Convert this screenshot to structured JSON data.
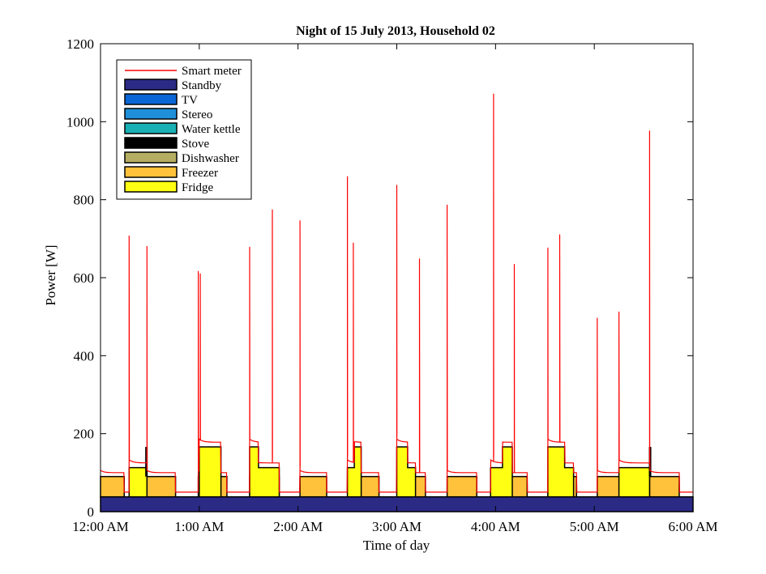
{
  "chart_data": {
    "type": "area",
    "title": "Night of 15 July 2013, Household 02",
    "xlabel": "Time of day",
    "ylabel": "Power [W]",
    "xlim": [
      0,
      6
    ],
    "ylim": [
      0,
      1200
    ],
    "xtick_values": [
      0,
      1,
      2,
      3,
      4,
      5,
      6
    ],
    "xtick_labels": [
      "12:00 AM",
      "1:00 AM",
      "2:00 AM",
      "3:00 AM",
      "4:00 AM",
      "5:00 AM",
      "6:00 AM"
    ],
    "ytick_values": [
      0,
      200,
      400,
      600,
      800,
      1000,
      1200
    ],
    "ytick_labels": [
      "0",
      "200",
      "400",
      "600",
      "800",
      "1000",
      "1200"
    ],
    "legend_position": "top-left",
    "legend": [
      {
        "name": "Smart meter",
        "color": "#ff0000",
        "kind": "line"
      },
      {
        "name": "Standby",
        "color": "#2b2a85",
        "kind": "patch"
      },
      {
        "name": "TV",
        "color": "#0a66d6",
        "kind": "patch"
      },
      {
        "name": "Stereo",
        "color": "#1f8fd9",
        "kind": "patch"
      },
      {
        "name": "Water kettle",
        "color": "#19b0b5",
        "kind": "patch"
      },
      {
        "name": "Stove",
        "color": "#000000",
        "kind": "patch"
      },
      {
        "name": "Dishwasher",
        "color": "#b5ae62",
        "kind": "patch"
      },
      {
        "name": "Freezer",
        "color": "#ffc23a",
        "kind": "patch"
      },
      {
        "name": "Fridge",
        "color": "#ffff14",
        "kind": "patch"
      }
    ],
    "standby_level": 38,
    "freezer_level": 90,
    "freezer_cycles": [
      [
        0.0,
        0.24
      ],
      [
        0.47,
        0.76
      ],
      [
        0.99,
        1.28
      ],
      [
        1.51,
        1.81
      ],
      [
        2.02,
        2.29
      ],
      [
        2.51,
        2.82
      ],
      [
        3.02,
        3.29
      ],
      [
        3.51,
        3.81
      ],
      [
        4.03,
        4.32
      ],
      [
        4.53,
        4.82
      ],
      [
        5.03,
        5.32
      ],
      [
        5.56,
        5.86
      ]
    ],
    "fridge_cycles": [
      {
        "start": 0.29,
        "end": 0.47,
        "steps": [
          [
            0.29,
            113
          ],
          [
            0.47,
            113
          ]
        ]
      },
      {
        "start": 1.0,
        "end": 1.22,
        "steps": [
          [
            1.0,
            166
          ],
          [
            1.22,
            166
          ]
        ]
      },
      {
        "start": 1.51,
        "end": 1.81,
        "steps": [
          [
            1.51,
            166
          ],
          [
            1.6,
            113
          ],
          [
            1.81,
            113
          ]
        ]
      },
      {
        "start": 2.5,
        "end": 2.64,
        "steps": [
          [
            2.5,
            113
          ],
          [
            2.57,
            166
          ],
          [
            2.64,
            166
          ]
        ]
      },
      {
        "start": 3.0,
        "end": 3.19,
        "steps": [
          [
            3.0,
            166
          ],
          [
            3.11,
            113
          ],
          [
            3.19,
            113
          ]
        ]
      },
      {
        "start": 3.95,
        "end": 4.17,
        "steps": [
          [
            3.95,
            113
          ],
          [
            4.07,
            166
          ],
          [
            4.17,
            166
          ]
        ]
      },
      {
        "start": 4.53,
        "end": 4.79,
        "steps": [
          [
            4.53,
            166
          ],
          [
            4.7,
            113
          ],
          [
            4.79,
            113
          ]
        ]
      },
      {
        "start": 5.25,
        "end": 5.56,
        "steps": [
          [
            5.25,
            113
          ],
          [
            5.56,
            113
          ]
        ]
      }
    ],
    "stove_spikes": [
      {
        "x": 0.465,
        "y": 166
      },
      {
        "x": 5.565,
        "y": 166
      }
    ],
    "meter_spikes": [
      {
        "x": 0.29,
        "y": 708
      },
      {
        "x": 0.47,
        "y": 681
      },
      {
        "x": 0.99,
        "y": 617
      },
      {
        "x": 1.01,
        "y": 611
      },
      {
        "x": 1.51,
        "y": 679
      },
      {
        "x": 1.74,
        "y": 775
      },
      {
        "x": 2.02,
        "y": 747
      },
      {
        "x": 2.5,
        "y": 860
      },
      {
        "x": 2.56,
        "y": 690
      },
      {
        "x": 3.0,
        "y": 838
      },
      {
        "x": 3.23,
        "y": 649
      },
      {
        "x": 3.51,
        "y": 787
      },
      {
        "x": 3.98,
        "y": 1072
      },
      {
        "x": 4.19,
        "y": 635
      },
      {
        "x": 4.53,
        "y": 677
      },
      {
        "x": 4.65,
        "y": 711
      },
      {
        "x": 5.03,
        "y": 497
      },
      {
        "x": 5.25,
        "y": 513
      },
      {
        "x": 5.56,
        "y": 977
      }
    ]
  }
}
